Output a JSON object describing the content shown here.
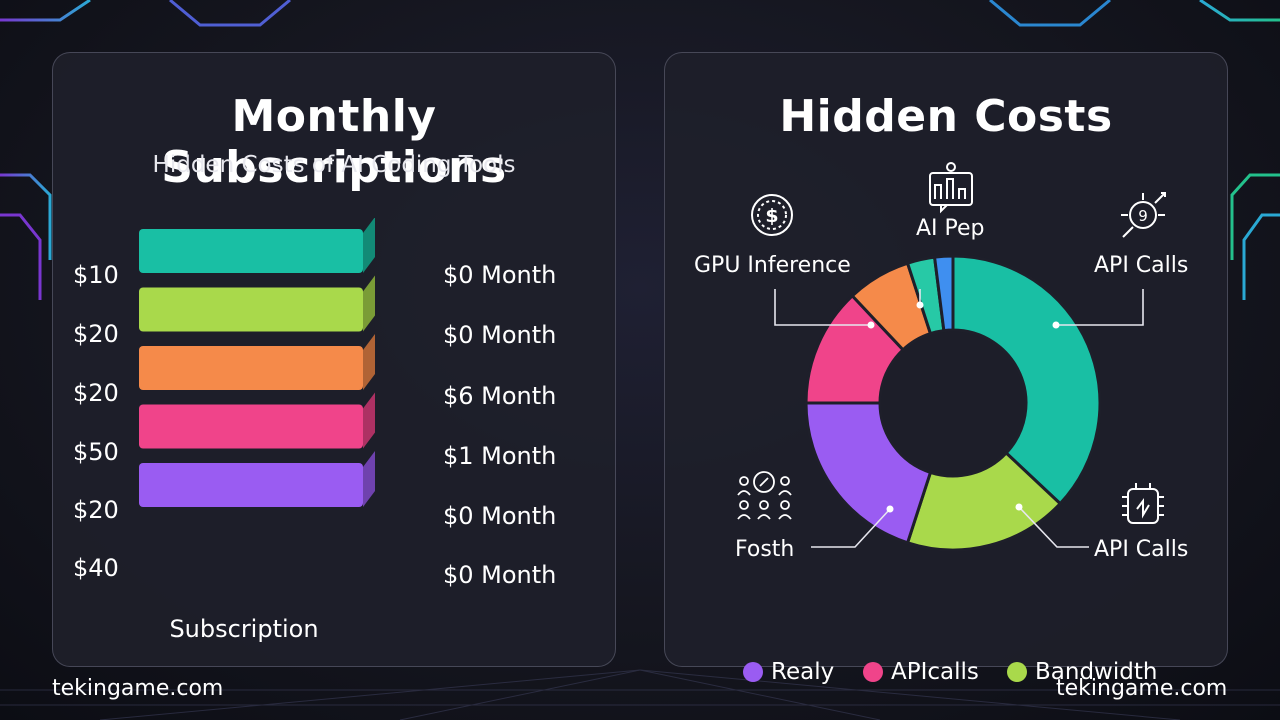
{
  "left_panel": {
    "title": "Monthly Subscriptions",
    "subtitle": "Hidden Costs of AI Coding Tools",
    "x_label": "Subscription"
  },
  "right_panel": {
    "title": "Hidden Costs"
  },
  "footer": {
    "left": "tekingame.com",
    "right": "tekingame.com"
  },
  "chart_data": [
    {
      "type": "bar",
      "stacked": true,
      "title": "Monthly Subscriptions",
      "subtitle": "Hidden Costs of AI Coding Tools",
      "xlabel": "Subscription",
      "layers": [
        {
          "price": "$10",
          "amount": "$0 Month",
          "color": "#38a6f5"
        },
        {
          "price": "$20",
          "amount": "$0 Month",
          "color": "#19bfa4"
        },
        {
          "price": "$20",
          "amount": "$6 Month",
          "color": "#a9d94b"
        },
        {
          "price": "$50",
          "amount": "$1 Month",
          "color": "#f58a4a"
        },
        {
          "price": "$20",
          "amount": "$0 Month",
          "color": "#f0448a"
        },
        {
          "price": "$40",
          "amount": "$0 Month",
          "color": "#9a5cf2"
        }
      ]
    },
    {
      "type": "pie",
      "donut": true,
      "title": "Hidden Costs",
      "slices": [
        {
          "value": 37,
          "color": "#19bfa4"
        },
        {
          "value": 18,
          "color": "#a9d94b"
        },
        {
          "value": 20,
          "color": "#9a5cf2"
        },
        {
          "value": 13,
          "color": "#f0448a"
        },
        {
          "value": 7,
          "color": "#f58a4a"
        },
        {
          "value": 3,
          "color": "#27c9a6"
        },
        {
          "value": 2,
          "color": "#3f8ff0"
        }
      ],
      "callouts": [
        {
          "label": "GPU Inference",
          "icon": "dollar-icon"
        },
        {
          "label": "AI Pep",
          "icon": "chart-icon"
        },
        {
          "label": "API Calls",
          "icon": "satellite-icon"
        },
        {
          "label": "Fosth",
          "icon": "people-icon"
        },
        {
          "label": "API Calls",
          "icon": "chip-icon"
        }
      ],
      "legend": [
        {
          "label": "Realy",
          "color": "#9a5cf2"
        },
        {
          "label": "APIcalls",
          "color": "#f0448a"
        },
        {
          "label": "Bandwidth",
          "color": "#a9d94b"
        }
      ]
    }
  ]
}
